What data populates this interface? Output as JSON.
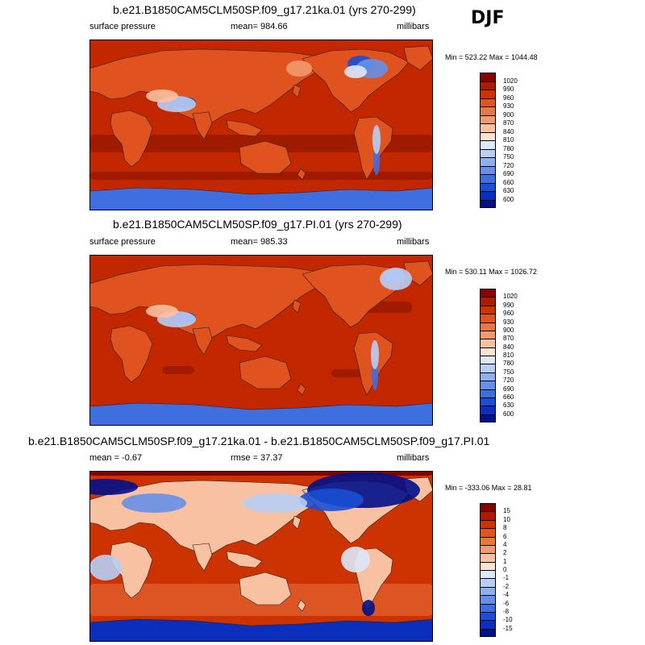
{
  "season": "DJF",
  "panels": [
    {
      "title": "b.e21.B1850CAM5CLM50SP.f09_g17.21ka.01 (yrs 270-299)",
      "left_label": "surface pressure",
      "center_label": "mean= 984.66",
      "right_label": "millibars",
      "minmax": "Min = 523.22 Max = 1044.48",
      "variant": "lgm",
      "colorbar": {
        "colors": [
          "#880000",
          "#b01a00",
          "#cc3300",
          "#dd5522",
          "#e87744",
          "#f19a6e",
          "#f8c1a2",
          "#fde4d2",
          "#dde8fa",
          "#b8cef5",
          "#8fb0ef",
          "#6690e8",
          "#3e6fe0",
          "#1a4fd4",
          "#0a2fbc",
          "#00118a"
        ],
        "labels": [
          "1020",
          "990",
          "960",
          "930",
          "900",
          "870",
          "840",
          "810",
          "780",
          "750",
          "720",
          "690",
          "660",
          "630",
          "600"
        ]
      }
    },
    {
      "title": "b.e21.B1850CAM5CLM50SP.f09_g17.PI.01 (yrs 270-299)",
      "left_label": "surface pressure",
      "center_label": "mean= 985.33",
      "right_label": "millibars",
      "minmax": "Min = 530.11 Max = 1026.72",
      "variant": "pi",
      "colorbar": {
        "colors": [
          "#880000",
          "#b01a00",
          "#cc3300",
          "#dd5522",
          "#e87744",
          "#f19a6e",
          "#f8c1a2",
          "#fde4d2",
          "#dde8fa",
          "#b8cef5",
          "#8fb0ef",
          "#6690e8",
          "#3e6fe0",
          "#1a4fd4",
          "#0a2fbc",
          "#00118a"
        ],
        "labels": [
          "1020",
          "990",
          "960",
          "930",
          "900",
          "870",
          "840",
          "810",
          "780",
          "750",
          "720",
          "690",
          "660",
          "630",
          "600"
        ]
      }
    },
    {
      "title": "b.e21.B1850CAM5CLM50SP.f09_g17.21ka.01 - b.e21.B1850CAM5CLM50SP.f09_g17.PI.01",
      "left_label": "mean =  -0.67",
      "center_label": "rmse =  37.37",
      "right_label": "millibars",
      "minmax": "Min = -333.06 Max =  28.81",
      "variant": "diff",
      "colorbar": {
        "colors": [
          "#880000",
          "#b01a00",
          "#cc3300",
          "#dd5522",
          "#e87744",
          "#f19a6e",
          "#f8c1a2",
          "#fde4d2",
          "#dde8fa",
          "#b8cef5",
          "#8fb0ef",
          "#6690e8",
          "#3e6fe0",
          "#1a4fd4",
          "#0a2fbc",
          "#00118a"
        ],
        "labels": [
          "15",
          "10",
          "8",
          "6",
          "4",
          "2",
          "1",
          "0",
          "-1",
          "-2",
          "-4",
          "-6",
          "-8",
          "-10",
          "-15"
        ]
      }
    }
  ]
}
